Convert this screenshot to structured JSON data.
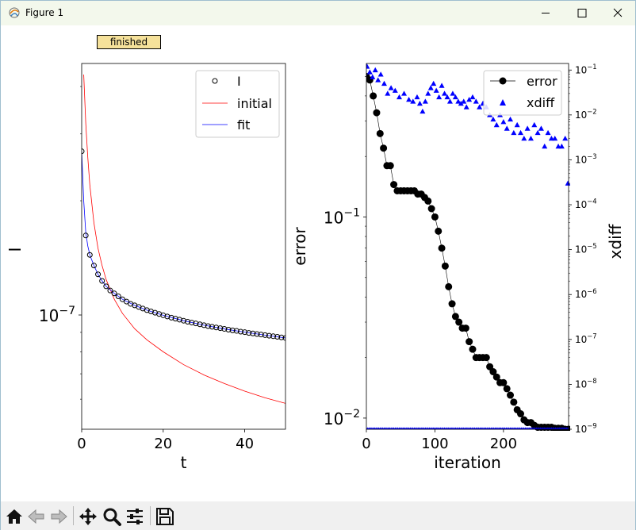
{
  "window": {
    "title": "Figure 1"
  },
  "status": {
    "label": "finished"
  },
  "toolbar": {
    "items": [
      "home-icon",
      "back-arrow-icon",
      "forward-arrow-icon",
      "pan-icon",
      "zoom-icon",
      "configure-subplots-icon",
      "save-icon"
    ]
  },
  "colors": {
    "data_marker": "#000000",
    "initial": "#ff0000",
    "fit": "#0000ff",
    "error": "#000000",
    "xdiff": "#0000ff",
    "status_bg": "#f5e19a"
  },
  "chart_data": [
    {
      "type": "scatter",
      "xlabel": "t",
      "ylabel": "I",
      "xlim": [
        0,
        50
      ],
      "yscale": "log",
      "ylim": [
        5e-08,
        4.6e-07
      ],
      "xticks": [
        "0",
        "20",
        "40"
      ],
      "yticks": [
        {
          "value": 1e-07,
          "label": "10",
          "exp": "−7"
        }
      ],
      "legend": {
        "placement": "top-right",
        "entries": [
          "I",
          "initial",
          "fit"
        ]
      },
      "series": [
        {
          "name": "I",
          "style": "open-circle",
          "x": [
            0,
            1,
            2,
            3,
            4,
            5,
            6,
            7,
            8,
            9,
            10,
            11,
            12,
            13,
            14,
            15,
            16,
            17,
            18,
            19,
            20,
            21,
            22,
            23,
            24,
            25,
            26,
            27,
            28,
            29,
            30,
            31,
            32,
            33,
            34,
            35,
            36,
            37,
            38,
            39,
            40,
            41,
            42,
            43,
            44,
            45,
            46,
            47,
            48,
            49,
            50
          ],
          "y": [
            2.7e-07,
            1.62e-07,
            1.44e-07,
            1.35e-07,
            1.28e-07,
            1.23e-07,
            1.19e-07,
            1.16e-07,
            1.14e-07,
            1.12e-07,
            1.1e-07,
            1.085e-07,
            1.07e-07,
            1.06e-07,
            1.05e-07,
            1.04e-07,
            1.03e-07,
            1.022e-07,
            1.014e-07,
            1.006e-07,
            9.98e-08,
            9.91e-08,
            9.84e-08,
            9.78e-08,
            9.72e-08,
            9.66e-08,
            9.6e-08,
            9.55e-08,
            9.5e-08,
            9.45e-08,
            9.4e-08,
            9.35e-08,
            9.31e-08,
            9.27e-08,
            9.23e-08,
            9.19e-08,
            9.15e-08,
            9.11e-08,
            9.08e-08,
            9.04e-08,
            9.01e-08,
            8.97e-08,
            8.94e-08,
            8.91e-08,
            8.88e-08,
            8.85e-08,
            8.82e-08,
            8.79e-08,
            8.76e-08,
            8.73e-08,
            8.7e-08
          ]
        },
        {
          "name": "initial",
          "style": "line",
          "x": [
            0.5,
            1,
            1.5,
            2,
            3,
            4,
            5,
            6,
            8,
            10,
            13,
            16,
            20,
            25,
            30,
            35,
            40,
            45,
            50
          ],
          "y": [
            4.3e-07,
            3.2e-07,
            2.6e-07,
            2.2e-07,
            1.75e-07,
            1.5e-07,
            1.35e-07,
            1.24e-07,
            1.1e-07,
            1.01e-07,
            9.2e-08,
            8.6e-08,
            8e-08,
            7.4e-08,
            6.95e-08,
            6.6e-08,
            6.3e-08,
            6.05e-08,
            5.85e-08
          ]
        },
        {
          "name": "fit",
          "style": "line",
          "x": [
            0,
            0.5,
            1,
            1.5,
            2,
            3,
            4,
            5,
            6,
            8,
            10,
            13,
            16,
            20,
            25,
            30,
            35,
            40,
            45,
            50
          ],
          "y": [
            2.7e-07,
            2e-07,
            1.65e-07,
            1.52e-07,
            1.44e-07,
            1.35e-07,
            1.28e-07,
            1.23e-07,
            1.19e-07,
            1.14e-07,
            1.1e-07,
            1.06e-07,
            1.03e-07,
            9.98e-08,
            9.66e-08,
            9.4e-08,
            9.19e-08,
            9.01e-08,
            8.85e-08,
            8.7e-08
          ]
        }
      ]
    },
    {
      "type": "line",
      "xlabel": "iteration",
      "ylabel": "error",
      "y2label": "xdiff",
      "xlim": [
        0,
        295
      ],
      "yscale": "log",
      "ylim": [
        0.0088,
        0.58
      ],
      "y2scale": "log",
      "y2lim": [
        1e-09,
        0.14
      ],
      "xticks": [
        "0",
        "100",
        "200"
      ],
      "yticks": [
        {
          "value": 0.1,
          "label": "10",
          "exp": "−1"
        },
        {
          "value": 0.01,
          "label": "10",
          "exp": "−2"
        }
      ],
      "y2ticks": [
        {
          "value": 0.1,
          "label": "10",
          "exp": "−1"
        },
        {
          "value": 0.01,
          "label": "10",
          "exp": "−2"
        },
        {
          "value": 0.001,
          "label": "10",
          "exp": "−3"
        },
        {
          "value": 0.0001,
          "label": "10",
          "exp": "−4"
        },
        {
          "value": 1e-05,
          "label": "10",
          "exp": "−5"
        },
        {
          "value": 1e-06,
          "label": "10",
          "exp": "−6"
        },
        {
          "value": 1e-07,
          "label": "10",
          "exp": "−7"
        },
        {
          "value": 1e-08,
          "label": "10",
          "exp": "−8"
        },
        {
          "value": 1e-09,
          "label": "10",
          "exp": "−9"
        }
      ],
      "legend": {
        "placement": "top-right",
        "entries": [
          "error",
          "xdiff"
        ]
      },
      "series": [
        {
          "name": "error",
          "axis": "left",
          "style": "line-marker",
          "x": [
            0,
            5,
            10,
            15,
            20,
            25,
            30,
            35,
            40,
            45,
            50,
            55,
            60,
            65,
            70,
            75,
            80,
            85,
            90,
            95,
            100,
            105,
            110,
            115,
            120,
            125,
            130,
            135,
            140,
            145,
            150,
            155,
            160,
            165,
            170,
            175,
            180,
            185,
            190,
            195,
            200,
            205,
            210,
            215,
            220,
            225,
            230,
            235,
            240,
            245,
            250,
            255,
            260,
            265,
            270,
            275,
            280,
            285,
            290,
            295
          ],
          "y": [
            0.5,
            0.48,
            0.4,
            0.33,
            0.26,
            0.22,
            0.18,
            0.18,
            0.145,
            0.135,
            0.135,
            0.135,
            0.135,
            0.135,
            0.135,
            0.13,
            0.13,
            0.125,
            0.12,
            0.11,
            0.1,
            0.085,
            0.07,
            0.057,
            0.045,
            0.037,
            0.032,
            0.03,
            0.028,
            0.028,
            0.024,
            0.022,
            0.02,
            0.02,
            0.02,
            0.02,
            0.018,
            0.017,
            0.016,
            0.015,
            0.015,
            0.014,
            0.013,
            0.012,
            0.011,
            0.0105,
            0.0098,
            0.0095,
            0.0095,
            0.0092,
            0.009,
            0.009,
            0.009,
            0.009,
            0.009,
            0.0089,
            0.0089,
            0.0089,
            0.0088,
            0.0088
          ]
        },
        {
          "name": "xdiff",
          "axis": "right",
          "style": "triangle",
          "x": [
            1,
            5,
            9,
            13,
            17,
            21,
            26,
            31,
            36,
            42,
            48,
            55,
            62,
            68,
            74,
            78,
            82,
            86,
            90,
            94,
            98,
            102,
            106,
            110,
            114,
            118,
            122,
            126,
            130,
            134,
            138,
            142,
            146,
            150,
            155,
            160,
            165,
            170,
            175,
            180,
            185,
            190,
            195,
            200,
            205,
            210,
            215,
            220,
            225,
            230,
            235,
            240,
            245,
            250,
            255,
            260,
            265,
            270,
            275,
            280,
            285,
            290,
            294
          ],
          "x_floor_start": 0,
          "x_floor_end": 295,
          "floor_value": 1e-09,
          "y": [
            0.12,
            0.09,
            0.07,
            0.1,
            0.06,
            0.08,
            0.05,
            0.03,
            0.04,
            0.035,
            0.025,
            0.03,
            0.022,
            0.02,
            0.025,
            0.018,
            0.012,
            0.02,
            0.03,
            0.04,
            0.05,
            0.035,
            0.025,
            0.045,
            0.03,
            0.025,
            0.02,
            0.03,
            0.025,
            0.02,
            0.018,
            0.02,
            0.015,
            0.022,
            0.025,
            0.02,
            0.015,
            0.018,
            0.015,
            0.01,
            0.008,
            0.006,
            0.01,
            0.007,
            0.005,
            0.008,
            0.004,
            0.006,
            0.004,
            0.003,
            0.005,
            0.003,
            0.006,
            0.004,
            0.005,
            0.002,
            0.004,
            0.003,
            0.003,
            0.002,
            0.002,
            0.003,
            0.0003
          ]
        }
      ]
    }
  ]
}
